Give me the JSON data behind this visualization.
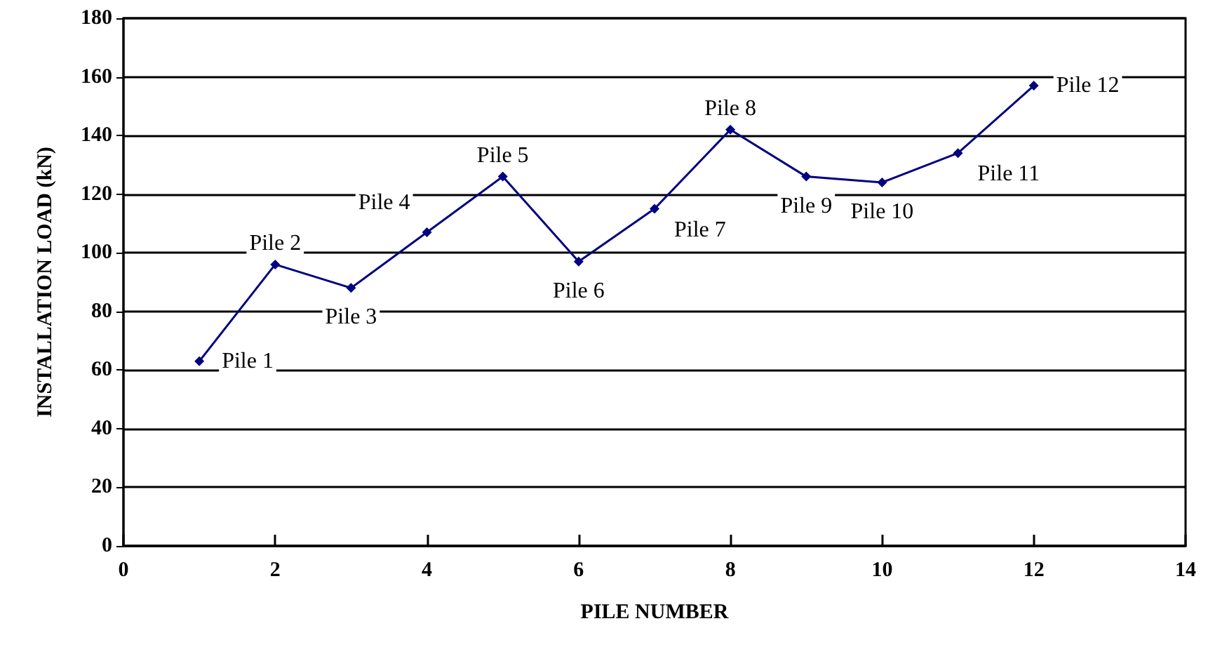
{
  "chart_data": {
    "type": "line",
    "xlabel": "PILE NUMBER",
    "ylabel": "INSTALLATION LOAD (kN)",
    "x": [
      1,
      2,
      3,
      4,
      5,
      6,
      7,
      8,
      9,
      10,
      11,
      12
    ],
    "series": [
      {
        "color": "#000080",
        "values": [
          63,
          96,
          88,
          107,
          126,
          97,
          115,
          142,
          126,
          124,
          134,
          157
        ]
      }
    ],
    "xlim": [
      0,
      14
    ],
    "xticks": [
      0,
      2,
      4,
      6,
      8,
      10,
      12,
      14
    ],
    "ylim": [
      0,
      180
    ],
    "yticks": [
      0,
      20,
      40,
      60,
      80,
      100,
      120,
      140,
      160,
      180
    ],
    "grid": "y",
    "marker": "diamond",
    "line_style": "solid",
    "annotations": [
      {
        "text": "Pile 1",
        "x": 1,
        "y": 63
      },
      {
        "text": "Pile 2",
        "x": 2,
        "y": 96
      },
      {
        "text": "Pile 3",
        "x": 3,
        "y": 88
      },
      {
        "text": "Pile 4",
        "x": 4,
        "y": 107
      },
      {
        "text": "Pile 5",
        "x": 5,
        "y": 126
      },
      {
        "text": "Pile 6",
        "x": 6,
        "y": 97
      },
      {
        "text": "Pile 7",
        "x": 7,
        "y": 115
      },
      {
        "text": "Pile 8",
        "x": 8,
        "y": 142
      },
      {
        "text": "Pile 9",
        "x": 9,
        "y": 126
      },
      {
        "text": "Pile 10",
        "x": 10,
        "y": 124
      },
      {
        "text": "Pile 11",
        "x": 11,
        "y": 134
      },
      {
        "text": "Pile 12",
        "x": 12,
        "y": 157
      }
    ]
  }
}
